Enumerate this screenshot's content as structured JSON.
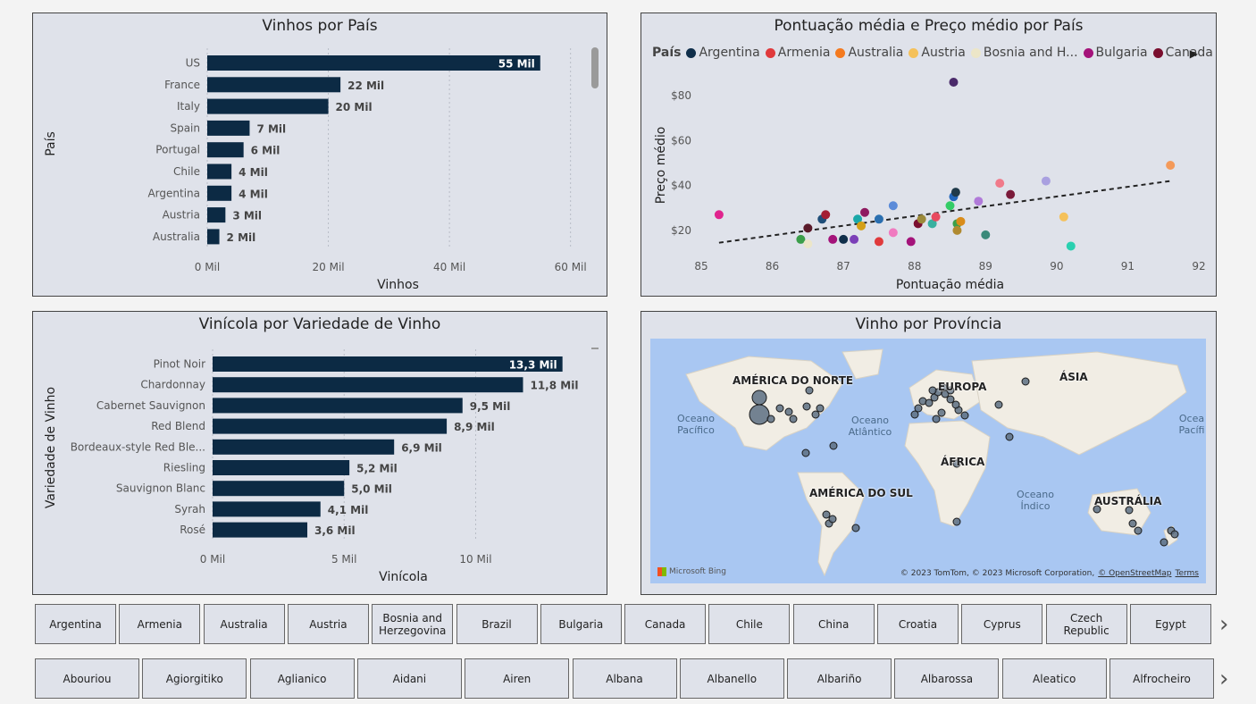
{
  "charts": {
    "wines_by_country": {
      "title": "Vinhos por País",
      "xlabel": "Vinhos",
      "ylabel": "País",
      "xticks": [
        "0 Mil",
        "20 Mil",
        "40 Mil",
        "60 Mil"
      ]
    },
    "price_vs_score": {
      "title": "Pontuação média e Preço médio por País",
      "xlabel": "Pontuação média",
      "ylabel": "Preço médio",
      "legend_title": "País",
      "legend": [
        {
          "name": "Argentina",
          "color": "#0f2e4a"
        },
        {
          "name": "Armenia",
          "color": "#e03a3c"
        },
        {
          "name": "Australia",
          "color": "#f47a1f"
        },
        {
          "name": "Austria",
          "color": "#f5c15a"
        },
        {
          "name": "Bosnia and H...",
          "color": "#ece6c8"
        },
        {
          "name": "Bulgaria",
          "color": "#a4137a"
        },
        {
          "name": "Canada",
          "color": "#7a0e2e"
        }
      ],
      "xticks": [
        "85",
        "86",
        "87",
        "88",
        "89",
        "90",
        "91",
        "92"
      ],
      "yticks": [
        "$20",
        "$40",
        "$60",
        "$80"
      ]
    },
    "winery_by_variety": {
      "title": "Vinícola por Variedade de Vinho",
      "xlabel": "Vinícola",
      "ylabel": "Variedade de Vinho",
      "xticks": [
        "0 Mil",
        "5 Mil",
        "10 Mil"
      ]
    },
    "map": {
      "title": "Vinho por Província",
      "labels": [
        "AMÉRICA DO NORTE",
        "EUROPA",
        "ÁSIA",
        "ÁFRICA",
        "AMÉRICA DO SUL",
        "AUSTRÁLIA"
      ],
      "oceans": [
        "Oceano Pacífico",
        "Oceano Atlântico",
        "Oceano Índico",
        "Ocea Pacífi"
      ],
      "provider": "Microsoft Bing",
      "credit": "© 2023 TomTom, © 2023 Microsoft Corporation,",
      "osm": "© OpenStreetMap",
      "terms": "Terms"
    }
  },
  "chart_data": [
    {
      "type": "bar",
      "title": "Vinhos por País",
      "categories": [
        "US",
        "France",
        "Italy",
        "Spain",
        "Portugal",
        "Chile",
        "Argentina",
        "Austria",
        "Australia"
      ],
      "values": [
        55,
        22,
        20,
        7,
        6,
        4,
        4,
        3,
        2
      ],
      "data_labels": [
        "55 Mil",
        "22 Mil",
        "20 Mil",
        "7 Mil",
        "6 Mil",
        "4 Mil",
        "4 Mil",
        "3 Mil",
        "2 Mil"
      ],
      "xlabel": "Vinhos",
      "ylabel": "País",
      "xlim": [
        0,
        63
      ]
    },
    {
      "type": "scatter",
      "title": "Pontuação média e Preço médio por País",
      "xlabel": "Pontuação média",
      "ylabel": "Preço médio",
      "xlim": [
        85,
        92
      ],
      "ylim": [
        10,
        88
      ],
      "trendline": [
        [
          85.25,
          14.5
        ],
        [
          91.6,
          42
        ]
      ],
      "points": [
        {
          "x": 85.25,
          "y": 27,
          "color": "#e0248e"
        },
        {
          "x": 86.4,
          "y": 16,
          "color": "#3b9e4a"
        },
        {
          "x": 86.5,
          "y": 21,
          "color": "#5a1a2a"
        },
        {
          "x": 86.5,
          "y": 14,
          "color": "#ece6c8"
        },
        {
          "x": 86.7,
          "y": 25,
          "color": "#1f4e79"
        },
        {
          "x": 86.75,
          "y": 27,
          "color": "#a41e34"
        },
        {
          "x": 86.85,
          "y": 16,
          "color": "#a4137a"
        },
        {
          "x": 87.0,
          "y": 16,
          "color": "#0f2e4a"
        },
        {
          "x": 87.15,
          "y": 16,
          "color": "#7b3fb8"
        },
        {
          "x": 87.2,
          "y": 25,
          "color": "#1aa8a8"
        },
        {
          "x": 87.25,
          "y": 22,
          "color": "#d4a017"
        },
        {
          "x": 87.3,
          "y": 28,
          "color": "#8e1a60"
        },
        {
          "x": 87.5,
          "y": 15,
          "color": "#e03a3c"
        },
        {
          "x": 87.5,
          "y": 25,
          "color": "#2a6fb0"
        },
        {
          "x": 87.7,
          "y": 31,
          "color": "#5b8bd9"
        },
        {
          "x": 87.7,
          "y": 19,
          "color": "#f07ac0"
        },
        {
          "x": 87.95,
          "y": 15,
          "color": "#a4137a"
        },
        {
          "x": 88.05,
          "y": 23,
          "color": "#7a0e2e"
        },
        {
          "x": 88.1,
          "y": 25,
          "color": "#9c8a3a"
        },
        {
          "x": 88.25,
          "y": 23,
          "color": "#3ab0a0"
        },
        {
          "x": 88.3,
          "y": 26,
          "color": "#e84a5f"
        },
        {
          "x": 88.5,
          "y": 31,
          "color": "#33cc66"
        },
        {
          "x": 88.55,
          "y": 35,
          "color": "#2266bb"
        },
        {
          "x": 88.58,
          "y": 37,
          "color": "#1f3a4a"
        },
        {
          "x": 88.6,
          "y": 23,
          "color": "#3ba04a"
        },
        {
          "x": 88.65,
          "y": 24,
          "color": "#d98c1a"
        },
        {
          "x": 88.6,
          "y": 20,
          "color": "#b08a30"
        },
        {
          "x": 88.9,
          "y": 33,
          "color": "#b07ad9"
        },
        {
          "x": 89.0,
          "y": 18,
          "color": "#3a8a7a"
        },
        {
          "x": 89.2,
          "y": 41,
          "color": "#f07a8a"
        },
        {
          "x": 89.35,
          "y": 36,
          "color": "#7a1a3a"
        },
        {
          "x": 89.85,
          "y": 42,
          "color": "#a9a0e0"
        },
        {
          "x": 90.1,
          "y": 26,
          "color": "#f5c15a"
        },
        {
          "x": 90.2,
          "y": 13,
          "color": "#2ad0b0"
        },
        {
          "x": 91.6,
          "y": 49,
          "color": "#f49a5a"
        },
        {
          "x": 88.55,
          "y": 86,
          "color": "#4a2a6a"
        }
      ]
    },
    {
      "type": "bar",
      "title": "Vinícola por Variedade de Vinho",
      "categories": [
        "Pinot Noir",
        "Chardonnay",
        "Cabernet Sauvignon",
        "Red Blend",
        "Bordeaux-style Red Ble...",
        "Riesling",
        "Sauvignon Blanc",
        "Syrah",
        "Rosé"
      ],
      "values": [
        13.3,
        11.8,
        9.5,
        8.9,
        6.9,
        5.2,
        5.0,
        4.1,
        3.6
      ],
      "data_labels": [
        "13,3 Mil",
        "11,8 Mil",
        "9,5 Mil",
        "8,9 Mil",
        "6,9 Mil",
        "5,2 Mil",
        "5,0 Mil",
        "4,1 Mil",
        "3,6 Mil"
      ],
      "xlabel": "Vinícola",
      "ylabel": "Variedade de Vinho",
      "xlim": [
        0,
        14.5
      ]
    }
  ],
  "slicers": {
    "countries": [
      "Argentina",
      "Armenia",
      "Australia",
      "Austria",
      "Bosnia and Herzegovina",
      "Brazil",
      "Bulgaria",
      "Canada",
      "Chile",
      "China",
      "Croatia",
      "Cyprus",
      "Czech Republic",
      "Egypt"
    ],
    "varieties": [
      "Abouriou",
      "Agiorgitiko",
      "Aglianico",
      "Aidani",
      "Airen",
      "Albana",
      "Albanello",
      "Albariño",
      "Albarossa",
      "Aleatico",
      "Alfrocheiro"
    ],
    "next_icon": "chevron-right-icon"
  }
}
